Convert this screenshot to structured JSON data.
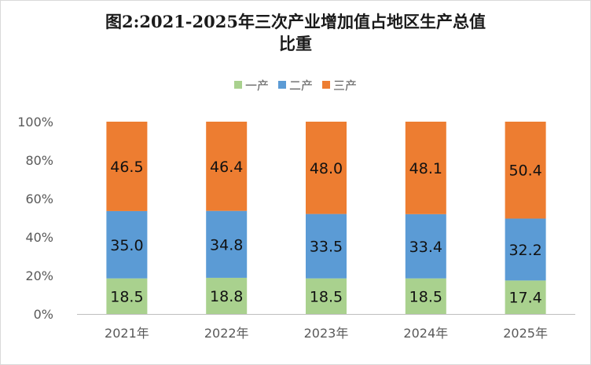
{
  "chart_data": {
    "type": "bar",
    "stacked": true,
    "title_lines": [
      "图2:2021-2025年三次产业增加值占地区生产总值",
      "比重"
    ],
    "categories": [
      "2021年",
      "2022年",
      "2023年",
      "2024年",
      "2025年"
    ],
    "series": [
      {
        "name": "一产",
        "color": "#a9d18e",
        "values": [
          18.5,
          18.8,
          18.5,
          18.5,
          17.4
        ]
      },
      {
        "name": "二产",
        "color": "#5b9bd5",
        "values": [
          35.0,
          34.8,
          33.5,
          33.4,
          32.2
        ]
      },
      {
        "name": "三产",
        "color": "#ed7d31",
        "values": [
          46.5,
          46.4,
          48.0,
          48.1,
          50.4
        ]
      }
    ],
    "data_labels": [
      [
        "18.5",
        "18.8",
        "18.5",
        "18.5",
        "17.4"
      ],
      [
        "35.0",
        "34.8",
        "33.5",
        "33.4",
        "32.2"
      ],
      [
        "46.5",
        "46.4",
        "48.0",
        "48.1",
        "50.4"
      ]
    ],
    "y_ticks": [
      "0%",
      "20%",
      "40%",
      "60%",
      "80%",
      "100%"
    ],
    "ylim": [
      0,
      100
    ],
    "legend_position": "top",
    "grid": false
  }
}
